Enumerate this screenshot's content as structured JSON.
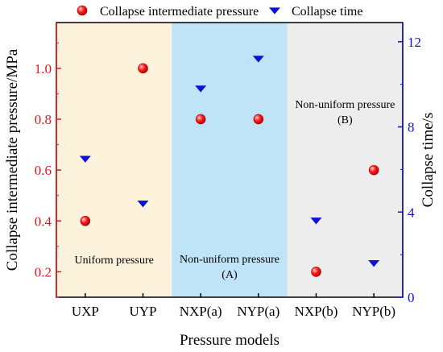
{
  "chart_data": {
    "type": "scatter",
    "categories": [
      "UXP",
      "UYP",
      "NXP(a)",
      "NYP(a)",
      "NXP(b)",
      "NYP(b)"
    ],
    "xlabel": "Pressure models",
    "ylabel": "Collapse intermediate pressure/MPa",
    "y2label": "Collapse time/s",
    "ylim": [
      0.1,
      1.18
    ],
    "y2lim": [
      0,
      12.9
    ],
    "yticks": [
      "0.2",
      "0.4",
      "0.6",
      "0.8",
      "1.0"
    ],
    "y2ticks": [
      "0",
      "4",
      "8",
      "12"
    ],
    "series": [
      {
        "name": "Collapse intermediate pressure",
        "axis": "left",
        "marker": "circle",
        "color": "#e8131b",
        "values": [
          0.4,
          1.0,
          0.8,
          0.8,
          0.2,
          0.6
        ]
      },
      {
        "name": "Collapse time",
        "axis": "right",
        "marker": "triangle-down",
        "color": "#0d10d6",
        "values": [
          6.5,
          4.4,
          9.8,
          11.2,
          3.6,
          1.6
        ]
      }
    ],
    "regions": [
      {
        "label": "Uniform pressure",
        "from": 0,
        "to": 1,
        "color": "#fdf3dc"
      },
      {
        "label": "Non-uniform pressure\n(A)",
        "from": 2,
        "to": 3,
        "color": "#bfe4f8"
      },
      {
        "label": "Non-uniform pressure\n(B)",
        "from": 4,
        "to": 5,
        "color": "#ededed"
      }
    ],
    "colors": {
      "left_axis": "#e8131b",
      "right_axis": "#0d10d6",
      "frame": "#000000"
    },
    "legend_position": "top",
    "grid": false
  }
}
